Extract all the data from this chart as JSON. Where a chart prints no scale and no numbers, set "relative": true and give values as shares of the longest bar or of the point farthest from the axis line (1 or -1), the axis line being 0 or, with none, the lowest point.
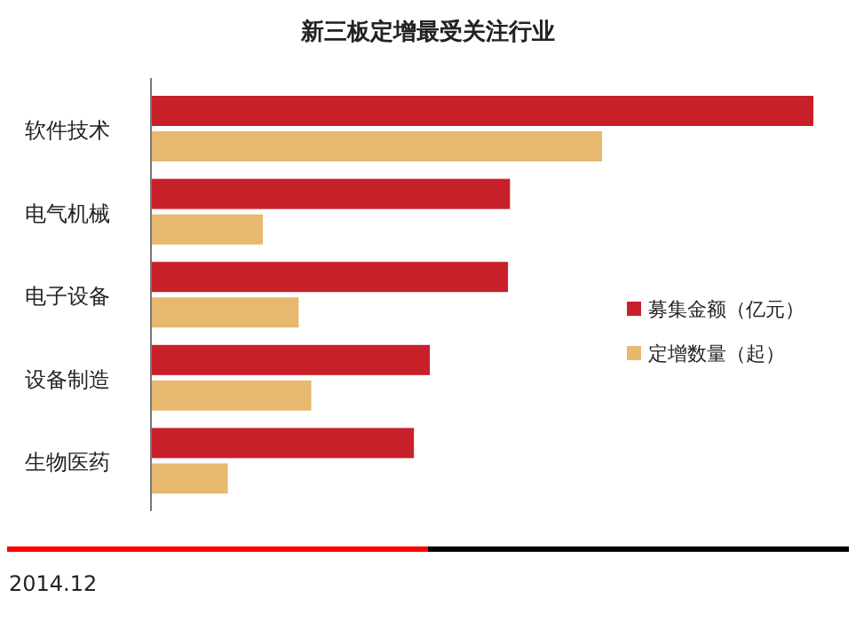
{
  "chart_data": {
    "type": "bar",
    "orientation": "horizontal",
    "relative": true,
    "title": "新三板定增最受关注行业",
    "categories": [
      "软件技术",
      "电气机械",
      "电子设备",
      "设备制造",
      "生物医药"
    ],
    "series": [
      {
        "name": "募集金额（亿元）",
        "color": "#c8202a",
        "values": [
          1,
          0.542,
          0.539,
          0.421,
          0.397
        ]
      },
      {
        "name": "定增数量（起）",
        "color": "#e6b96f",
        "values": [
          0.681,
          0.169,
          0.223,
          0.242,
          0.116
        ]
      }
    ],
    "legend": "right",
    "annotations": [
      "2014.12"
    ]
  }
}
